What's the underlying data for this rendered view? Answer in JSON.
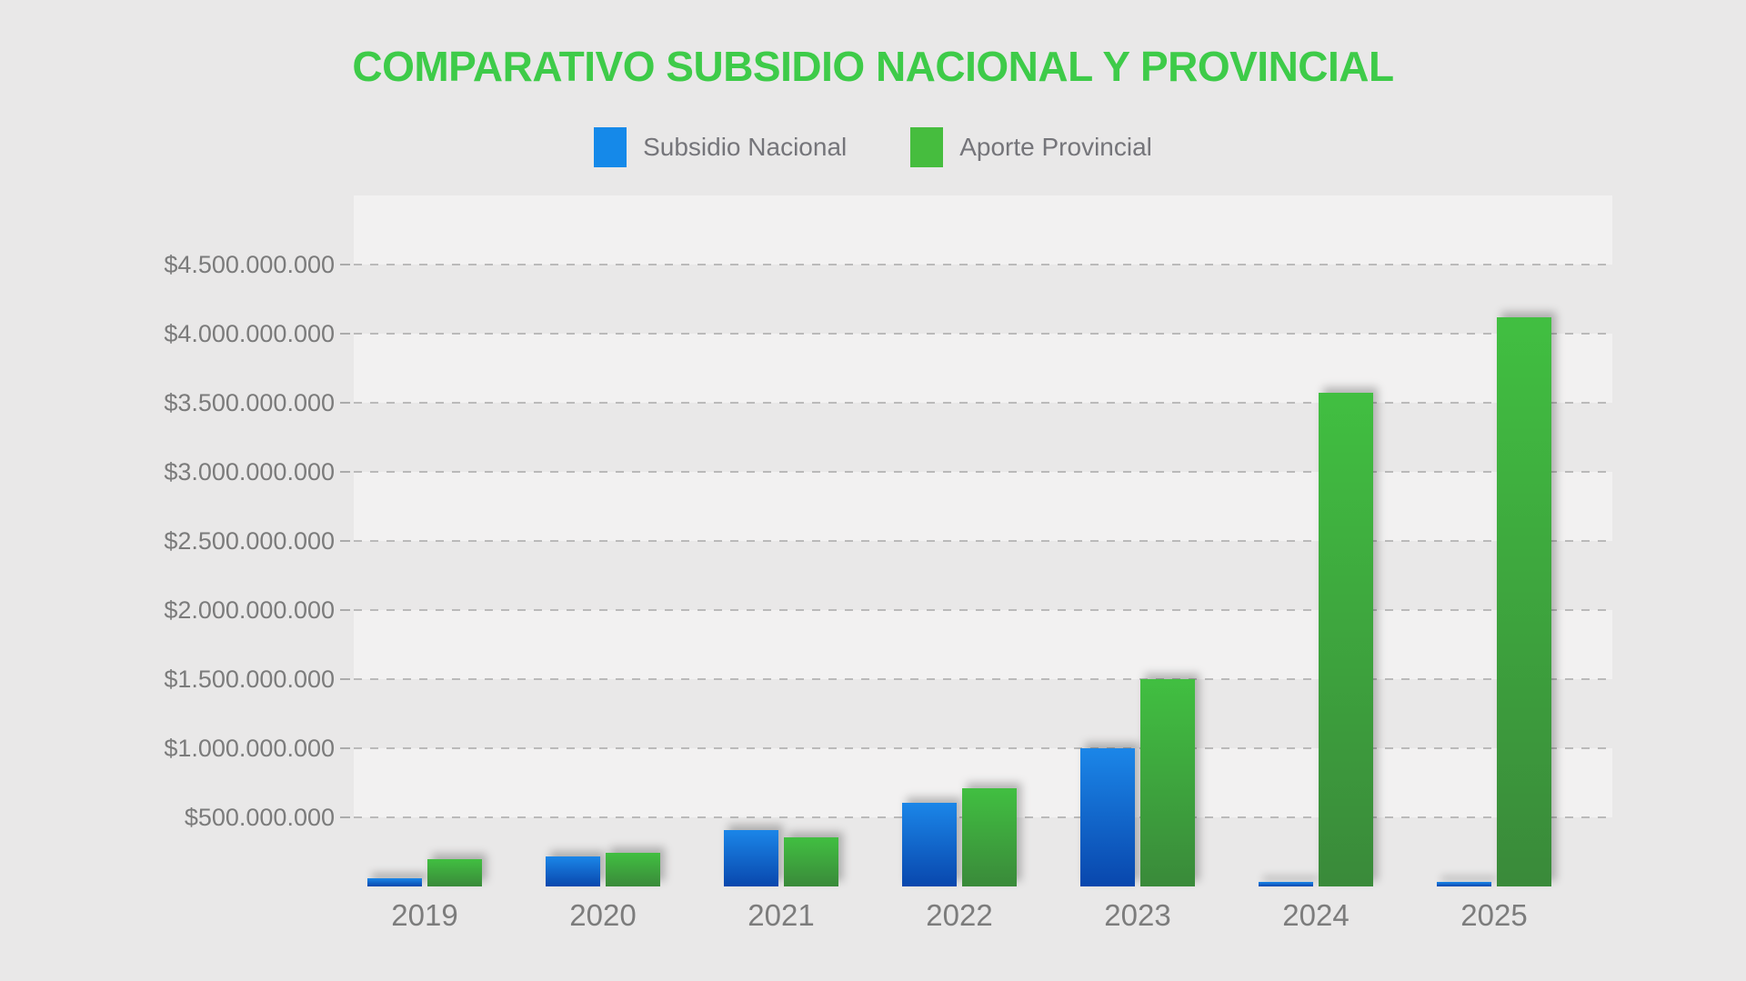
{
  "page": {
    "background": "#e9e8e8"
  },
  "title": {
    "text": "COMPARATIVO SUBSIDIO NACIONAL Y PROVINCIAL",
    "color": "#3ecb49"
  },
  "legend": {
    "items": [
      {
        "label": "Subsidio Nacional",
        "color": "#1589e9"
      },
      {
        "label": "Aporte Provincial",
        "color": "#46bd3e"
      }
    ]
  },
  "chart_data": {
    "type": "bar",
    "title": "COMPARATIVO SUBSIDIO NACIONAL Y PROVINCIAL",
    "categories": [
      "2019",
      "2020",
      "2021",
      "2022",
      "2023",
      "2024",
      "2025"
    ],
    "series": [
      {
        "name": "Subsidio Nacional",
        "color_top": "#1b86e8",
        "color_bottom": "#0947ad",
        "values": [
          60000000,
          215000000,
          410000000,
          605000000,
          1000000000,
          30000000,
          30000000
        ]
      },
      {
        "name": "Aporte Provincial",
        "color_top": "#41bf41",
        "color_bottom": "#3a8a3a",
        "values": [
          200000000,
          245000000,
          355000000,
          710000000,
          1500000000,
          3570000000,
          4120000000
        ]
      }
    ],
    "y_axis": {
      "min": 0,
      "max": 5000000000,
      "gridline_step": 500000000,
      "tick_labels": [
        "$4.500.000.000",
        "$4.000.000.000",
        "$3.500.000.000",
        "$3.000.000.000",
        "$2.500.000.000",
        "$2.000.000.000",
        "$1.500.000.000",
        "$1.000.000.000",
        "$500.000.000"
      ]
    },
    "legend_position": "top",
    "grid": "dashed horizontal",
    "plot_background_bands": [
      "#f2f1f1",
      "#e9e8e8"
    ]
  }
}
